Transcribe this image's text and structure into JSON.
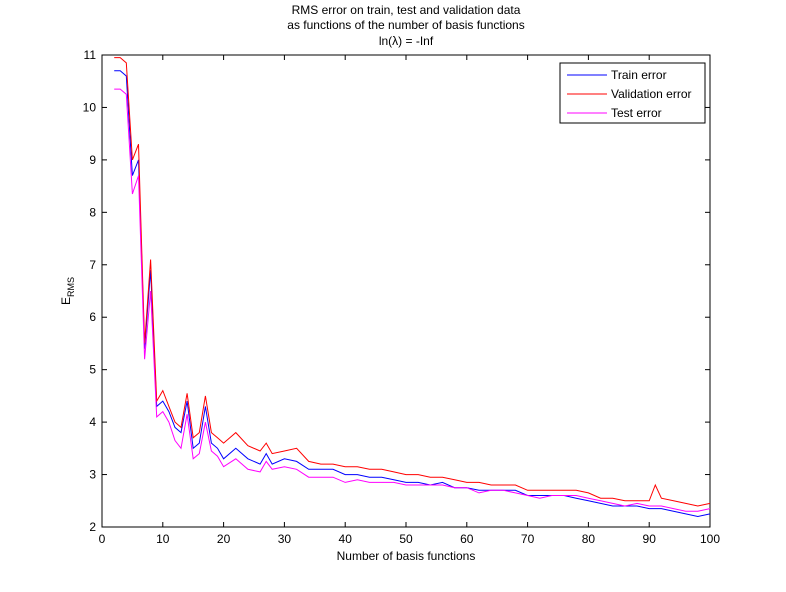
{
  "chart_data": {
    "type": "line",
    "title": [
      "RMS error on train, test and validation data",
      "as functions of the number of basis functions",
      "ln(λ) = -Inf"
    ],
    "xlabel": "Number of basis functions",
    "ylabel": "E",
    "ylabel_sub": "RMS",
    "xlim": [
      0,
      100
    ],
    "ylim": [
      2,
      11
    ],
    "xticks": [
      "0",
      "10",
      "20",
      "30",
      "40",
      "50",
      "60",
      "70",
      "80",
      "90",
      "100"
    ],
    "yticks": [
      "2",
      "3",
      "4",
      "5",
      "6",
      "7",
      "8",
      "9",
      "10",
      "11"
    ],
    "grid": false,
    "legend_position": "top-right",
    "series": [
      {
        "name": "Train error",
        "color": "#0000ff",
        "points": [
          [
            2,
            10.7
          ],
          [
            3,
            10.7
          ],
          [
            4,
            10.6
          ],
          [
            5,
            8.7
          ],
          [
            6,
            9.0
          ],
          [
            7,
            5.4
          ],
          [
            8,
            6.9
          ],
          [
            9,
            4.3
          ],
          [
            10,
            4.4
          ],
          [
            11,
            4.2
          ],
          [
            12,
            3.9
          ],
          [
            13,
            3.8
          ],
          [
            14,
            4.4
          ],
          [
            15,
            3.5
          ],
          [
            16,
            3.6
          ],
          [
            17,
            4.3
          ],
          [
            18,
            3.6
          ],
          [
            19,
            3.5
          ],
          [
            20,
            3.3
          ],
          [
            22,
            3.5
          ],
          [
            24,
            3.3
          ],
          [
            26,
            3.2
          ],
          [
            27,
            3.4
          ],
          [
            28,
            3.2
          ],
          [
            30,
            3.3
          ],
          [
            32,
            3.25
          ],
          [
            34,
            3.1
          ],
          [
            36,
            3.1
          ],
          [
            38,
            3.1
          ],
          [
            40,
            3.0
          ],
          [
            42,
            3.0
          ],
          [
            44,
            2.95
          ],
          [
            46,
            2.95
          ],
          [
            48,
            2.9
          ],
          [
            50,
            2.85
          ],
          [
            52,
            2.85
          ],
          [
            54,
            2.8
          ],
          [
            56,
            2.85
          ],
          [
            58,
            2.75
          ],
          [
            60,
            2.75
          ],
          [
            62,
            2.7
          ],
          [
            64,
            2.7
          ],
          [
            66,
            2.7
          ],
          [
            68,
            2.7
          ],
          [
            70,
            2.6
          ],
          [
            72,
            2.6
          ],
          [
            74,
            2.6
          ],
          [
            76,
            2.6
          ],
          [
            78,
            2.55
          ],
          [
            80,
            2.5
          ],
          [
            82,
            2.45
          ],
          [
            84,
            2.4
          ],
          [
            86,
            2.4
          ],
          [
            88,
            2.4
          ],
          [
            90,
            2.35
          ],
          [
            92,
            2.35
          ],
          [
            94,
            2.3
          ],
          [
            96,
            2.25
          ],
          [
            98,
            2.2
          ],
          [
            100,
            2.25
          ]
        ]
      },
      {
        "name": "Validation error",
        "color": "#ff0000",
        "points": [
          [
            2,
            10.95
          ],
          [
            3,
            10.95
          ],
          [
            4,
            10.85
          ],
          [
            5,
            9.0
          ],
          [
            6,
            9.3
          ],
          [
            7,
            5.5
          ],
          [
            8,
            7.1
          ],
          [
            9,
            4.4
          ],
          [
            10,
            4.6
          ],
          [
            11,
            4.3
          ],
          [
            12,
            4.0
          ],
          [
            13,
            3.9
          ],
          [
            14,
            4.55
          ],
          [
            15,
            3.7
          ],
          [
            16,
            3.8
          ],
          [
            17,
            4.5
          ],
          [
            18,
            3.8
          ],
          [
            19,
            3.7
          ],
          [
            20,
            3.6
          ],
          [
            22,
            3.8
          ],
          [
            24,
            3.55
          ],
          [
            26,
            3.45
          ],
          [
            27,
            3.6
          ],
          [
            28,
            3.4
          ],
          [
            30,
            3.45
          ],
          [
            32,
            3.5
          ],
          [
            34,
            3.25
          ],
          [
            36,
            3.2
          ],
          [
            38,
            3.2
          ],
          [
            40,
            3.15
          ],
          [
            42,
            3.15
          ],
          [
            44,
            3.1
          ],
          [
            46,
            3.1
          ],
          [
            48,
            3.05
          ],
          [
            50,
            3.0
          ],
          [
            52,
            3.0
          ],
          [
            54,
            2.95
          ],
          [
            56,
            2.95
          ],
          [
            58,
            2.9
          ],
          [
            60,
            2.85
          ],
          [
            62,
            2.85
          ],
          [
            64,
            2.8
          ],
          [
            66,
            2.8
          ],
          [
            68,
            2.8
          ],
          [
            70,
            2.7
          ],
          [
            72,
            2.7
          ],
          [
            74,
            2.7
          ],
          [
            76,
            2.7
          ],
          [
            78,
            2.7
          ],
          [
            80,
            2.65
          ],
          [
            82,
            2.55
          ],
          [
            84,
            2.55
          ],
          [
            86,
            2.5
          ],
          [
            88,
            2.5
          ],
          [
            90,
            2.5
          ],
          [
            91,
            2.8
          ],
          [
            92,
            2.55
          ],
          [
            94,
            2.5
          ],
          [
            96,
            2.45
          ],
          [
            98,
            2.4
          ],
          [
            100,
            2.45
          ]
        ]
      },
      {
        "name": "Test error",
        "color": "#ff00ff",
        "points": [
          [
            2,
            10.35
          ],
          [
            3,
            10.35
          ],
          [
            4,
            10.25
          ],
          [
            5,
            8.35
          ],
          [
            6,
            8.7
          ],
          [
            7,
            5.2
          ],
          [
            8,
            6.5
          ],
          [
            9,
            4.1
          ],
          [
            10,
            4.2
          ],
          [
            11,
            4.0
          ],
          [
            12,
            3.65
          ],
          [
            13,
            3.5
          ],
          [
            14,
            4.15
          ],
          [
            15,
            3.3
          ],
          [
            16,
            3.4
          ],
          [
            17,
            4.0
          ],
          [
            18,
            3.45
          ],
          [
            19,
            3.35
          ],
          [
            20,
            3.15
          ],
          [
            22,
            3.3
          ],
          [
            24,
            3.1
          ],
          [
            26,
            3.05
          ],
          [
            27,
            3.25
          ],
          [
            28,
            3.1
          ],
          [
            30,
            3.15
          ],
          [
            32,
            3.1
          ],
          [
            34,
            2.95
          ],
          [
            36,
            2.95
          ],
          [
            38,
            2.95
          ],
          [
            40,
            2.85
          ],
          [
            42,
            2.9
          ],
          [
            44,
            2.85
          ],
          [
            46,
            2.85
          ],
          [
            48,
            2.85
          ],
          [
            50,
            2.8
          ],
          [
            52,
            2.8
          ],
          [
            54,
            2.8
          ],
          [
            56,
            2.8
          ],
          [
            58,
            2.75
          ],
          [
            60,
            2.75
          ],
          [
            62,
            2.65
          ],
          [
            64,
            2.7
          ],
          [
            66,
            2.7
          ],
          [
            68,
            2.65
          ],
          [
            70,
            2.6
          ],
          [
            72,
            2.55
          ],
          [
            74,
            2.6
          ],
          [
            76,
            2.6
          ],
          [
            78,
            2.6
          ],
          [
            80,
            2.55
          ],
          [
            82,
            2.5
          ],
          [
            84,
            2.45
          ],
          [
            86,
            2.4
          ],
          [
            88,
            2.45
          ],
          [
            90,
            2.4
          ],
          [
            92,
            2.4
          ],
          [
            94,
            2.35
          ],
          [
            96,
            2.3
          ],
          [
            98,
            2.3
          ],
          [
            100,
            2.35
          ]
        ]
      }
    ]
  }
}
